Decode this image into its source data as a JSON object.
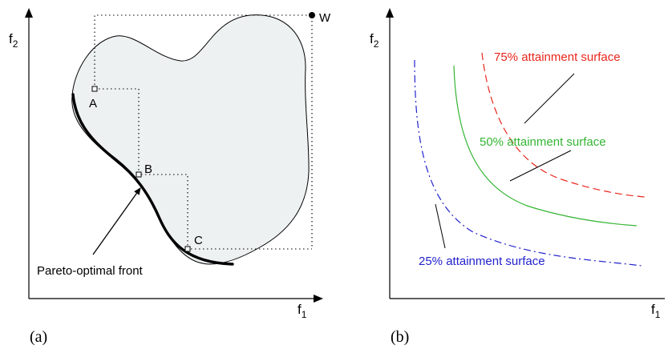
{
  "panel_a": {
    "caption": "(a)",
    "axis_x": {
      "base": "f",
      "sub": "1"
    },
    "axis_y": {
      "base": "f",
      "sub": "2"
    },
    "points": {
      "a": "A",
      "b": "B",
      "c": "C",
      "w": "W"
    },
    "front_label": "Pareto-optimal front",
    "colors": {
      "region_fill": "#edf1f1",
      "front": "#000000"
    }
  },
  "panel_b": {
    "caption": "(b)",
    "axis_x": {
      "base": "f",
      "sub": "1"
    },
    "axis_y": {
      "base": "f",
      "sub": "2"
    },
    "surfaces": {
      "s75": {
        "label": "75% attainment surface",
        "color": "#e8261c"
      },
      "s50": {
        "label": "50% attainment surface",
        "color": "#34b534"
      },
      "s25": {
        "label": "25% attainment surface",
        "color": "#2222cc"
      }
    }
  }
}
